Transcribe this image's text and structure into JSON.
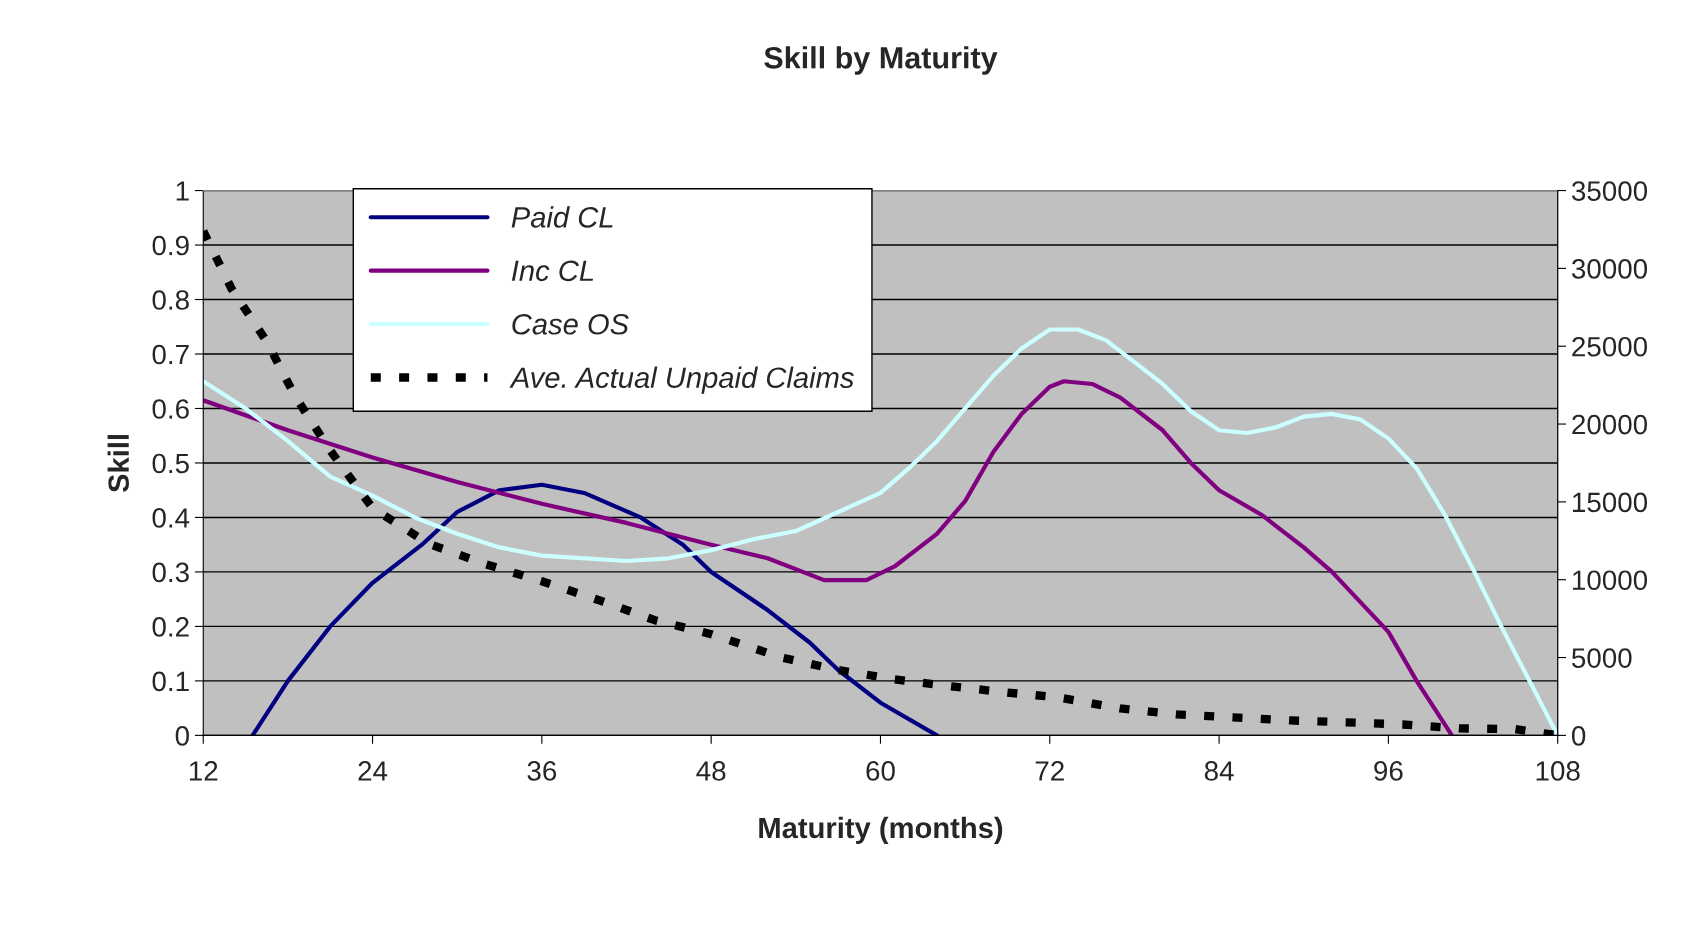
{
  "chart_data": {
    "type": "line",
    "title": "Skill by Maturity",
    "xlabel": "Maturity (months)",
    "ylabel": "Skill",
    "xlim": [
      12,
      108
    ],
    "xticks": [
      12,
      24,
      36,
      48,
      60,
      72,
      84,
      96,
      108
    ],
    "ylim": [
      0,
      1
    ],
    "yticks": [
      0,
      0.1,
      0.2,
      0.3,
      0.4,
      0.5,
      0.6,
      0.7,
      0.8,
      0.9,
      1
    ],
    "y2lim": [
      0,
      35000
    ],
    "y2ticks": [
      0,
      5000,
      10000,
      15000,
      20000,
      25000,
      30000,
      35000
    ],
    "grid": "y",
    "legend": "top left",
    "marker": "none",
    "series": [
      {
        "name": "Paid CL",
        "color": "#000080",
        "line_style": "solid",
        "x": [
          15.5,
          18,
          21,
          24,
          27.5,
          30,
          33,
          36,
          39,
          43,
          46,
          48,
          52,
          55,
          57,
          60,
          64
        ],
        "values": [
          0,
          0.1,
          0.2,
          0.28,
          0.35,
          0.41,
          0.45,
          0.46,
          0.445,
          0.4,
          0.35,
          0.3,
          0.23,
          0.17,
          0.12,
          0.06,
          0
        ]
      },
      {
        "name": "Inc CL",
        "color": "#800080",
        "line_style": "solid",
        "x": [
          12,
          18,
          24,
          30,
          36,
          42,
          48,
          52,
          56,
          59,
          61,
          64,
          66,
          68,
          70,
          72,
          73,
          75,
          77,
          80,
          82,
          84,
          87,
          90,
          92,
          94,
          96,
          98,
          99,
          100.5
        ],
        "values": [
          0.615,
          0.56,
          0.51,
          0.465,
          0.425,
          0.39,
          0.35,
          0.325,
          0.285,
          0.285,
          0.31,
          0.37,
          0.43,
          0.52,
          0.59,
          0.64,
          0.65,
          0.645,
          0.62,
          0.56,
          0.5,
          0.45,
          0.405,
          0.345,
          0.3,
          0.245,
          0.19,
          0.1,
          0.06,
          0
        ]
      },
      {
        "name": "Case OS",
        "color": "#ccffff",
        "line_style": "solid",
        "x": [
          12,
          15,
          18,
          21,
          24,
          27,
          30,
          33,
          36,
          42,
          45,
          48,
          51,
          54,
          57,
          60,
          62,
          64,
          66,
          68,
          70,
          72,
          74,
          76,
          78,
          80,
          82,
          84,
          86,
          88,
          90,
          92,
          94,
          96,
          98,
          100,
          102,
          104,
          106,
          108
        ],
        "values": [
          0.65,
          0.6,
          0.54,
          0.475,
          0.44,
          0.4,
          0.37,
          0.345,
          0.33,
          0.32,
          0.325,
          0.34,
          0.36,
          0.375,
          0.41,
          0.445,
          0.49,
          0.54,
          0.6,
          0.66,
          0.71,
          0.745,
          0.745,
          0.725,
          0.685,
          0.645,
          0.595,
          0.56,
          0.555,
          0.565,
          0.585,
          0.59,
          0.58,
          0.545,
          0.49,
          0.405,
          0.305,
          0.2,
          0.1,
          0
        ]
      },
      {
        "name": "Ave. Actual Unpaid Claims",
        "color": "#000000",
        "line_style": "dashed",
        "axis": "y2",
        "x": [
          12,
          14,
          16.5,
          18.5,
          21,
          24,
          28,
          32,
          36,
          40,
          44,
          48,
          53,
          57,
          61,
          65,
          69,
          72.5,
          77,
          81,
          85,
          89,
          93,
          97,
          101,
          105,
          108
        ],
        "values": [
          32400,
          28700,
          25300,
          21800,
          18300,
          14600,
          12300,
          11000,
          9900,
          8700,
          7400,
          6500,
          5000,
          4200,
          3600,
          3150,
          2750,
          2450,
          1730,
          1350,
          1160,
          960,
          840,
          700,
          450,
          400,
          0
        ]
      }
    ]
  }
}
